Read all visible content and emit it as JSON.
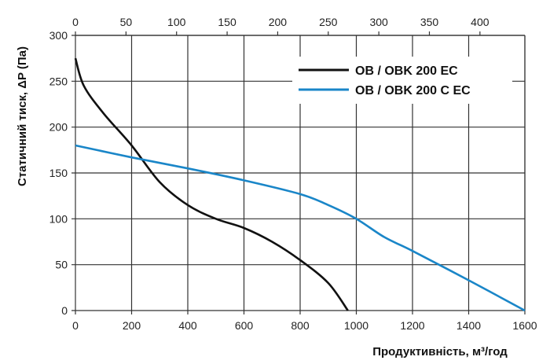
{
  "chart_data": {
    "type": "line",
    "xlabel": "Продуктивність, м³/год",
    "ylabel": "Статичний тиск, ΔP (Па)",
    "xlim": [
      0,
      1600
    ],
    "ylim": [
      0,
      300
    ],
    "x_ticks": [
      "0",
      "200",
      "400",
      "600",
      "800",
      "1000",
      "1200",
      "1400",
      "1600"
    ],
    "y_ticks": [
      "0",
      "50",
      "100",
      "150",
      "200",
      "250",
      "300"
    ],
    "top_axis": {
      "xlim": [
        0,
        444.4
      ],
      "ticks": [
        "0",
        "50",
        "100",
        "150",
        "200",
        "250",
        "300",
        "350",
        "400"
      ]
    },
    "grid": true,
    "legend_position": "top-right",
    "series": [
      {
        "name": "OB / OBK 200 EC",
        "color": "#111111",
        "x": [
          0,
          30,
          100,
          200,
          300,
          400,
          500,
          600,
          700,
          800,
          900,
          970
        ],
        "y": [
          275,
          245,
          215,
          180,
          140,
          115,
          100,
          90,
          75,
          55,
          30,
          0
        ]
      },
      {
        "name": "OB / OBK 200 C EC",
        "color": "#1a86c8",
        "x": [
          0,
          200,
          400,
          600,
          800,
          900,
          1000,
          1100,
          1200,
          1400,
          1600
        ],
        "y": [
          180,
          167,
          155,
          142,
          127,
          115,
          100,
          80,
          65,
          33,
          0
        ]
      }
    ]
  }
}
